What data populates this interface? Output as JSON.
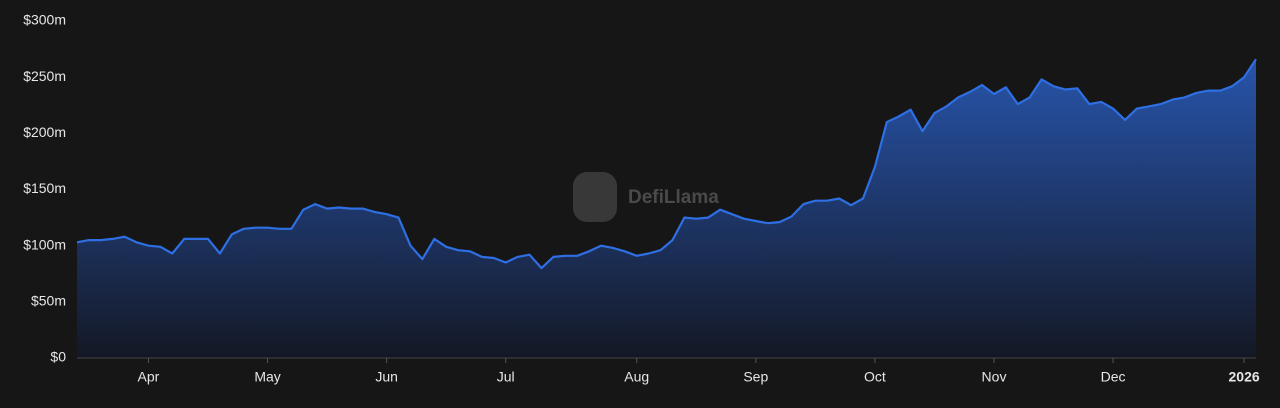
{
  "chart_data": {
    "type": "area",
    "watermark": "DefiLlama",
    "categories": [
      null,
      null,
      null,
      null,
      null,
      null,
      "Apr",
      null,
      null,
      null,
      null,
      null,
      null,
      null,
      null,
      null,
      "May",
      null,
      null,
      null,
      null,
      null,
      null,
      null,
      null,
      null,
      "Jun",
      null,
      null,
      null,
      null,
      null,
      null,
      null,
      null,
      null,
      "Jul",
      null,
      null,
      null,
      null,
      null,
      null,
      null,
      null,
      null,
      null,
      "Aug",
      null,
      null,
      null,
      null,
      null,
      null,
      null,
      null,
      null,
      "Sep",
      null,
      null,
      null,
      null,
      null,
      null,
      null,
      null,
      null,
      "Oct",
      null,
      null,
      null,
      null,
      null,
      null,
      null,
      null,
      null,
      "Nov",
      null,
      null,
      null,
      null,
      null,
      null,
      null,
      null,
      null,
      "Dec",
      null,
      null,
      null,
      null,
      null,
      null,
      null,
      null,
      null,
      null,
      "2026",
      null
    ],
    "series": [
      {
        "color": "#2f6fe4",
        "values": [
          103,
          105,
          105,
          106,
          108,
          103,
          100,
          99,
          93,
          106,
          106,
          106,
          93,
          110,
          115,
          116,
          116,
          115,
          115,
          132,
          137,
          133,
          134,
          133,
          133,
          130,
          128,
          125,
          100,
          88,
          106,
          99,
          96,
          95,
          90,
          89,
          85,
          90,
          92,
          80,
          90,
          91,
          91,
          95,
          100,
          98,
          95,
          91,
          93,
          96,
          105,
          125,
          124,
          125,
          132,
          128,
          124,
          122,
          120,
          121,
          126,
          137,
          140,
          140,
          142,
          136,
          142,
          170,
          210,
          215,
          221,
          202,
          218,
          224,
          232,
          237,
          243,
          235,
          241,
          226,
          232,
          248,
          242,
          239,
          240,
          226,
          228,
          222,
          212,
          222,
          224,
          226,
          230,
          232,
          236,
          238,
          238,
          242,
          250,
          266
        ]
      }
    ],
    "ylim": [
      0,
      300
    ],
    "yticks": [
      {
        "value": 0,
        "label": "$0"
      },
      {
        "value": 50,
        "label": "$50m"
      },
      {
        "value": 100,
        "label": "$100m"
      },
      {
        "value": 150,
        "label": "$150m"
      },
      {
        "value": 200,
        "label": "$200m"
      },
      {
        "value": 250,
        "label": "$250m"
      },
      {
        "value": 300,
        "label": "$300m"
      }
    ]
  }
}
